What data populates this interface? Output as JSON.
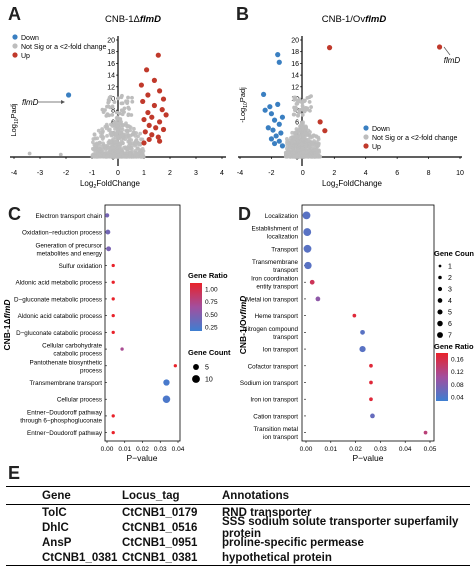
{
  "panels": {
    "A": {
      "letter": "A"
    },
    "B": {
      "letter": "B"
    },
    "C": {
      "letter": "C"
    },
    "D": {
      "letter": "D"
    },
    "E": {
      "letter": "E"
    }
  },
  "chart_data": [
    {
      "type": "scatter",
      "panel": "A",
      "title_prefix": "CNB-1Δ",
      "title_gene": "flmD",
      "xlabel_pre": "Log",
      "xlabel_sub": "2",
      "xlabel_post": "FoldChange",
      "ylabel_pre": "Log",
      "ylabel_sub": "10",
      "ylabel_post": "Padj",
      "xlim": [
        -4,
        4
      ],
      "ylim": [
        0,
        20
      ],
      "x_ticks": [
        "-4",
        "-3",
        "-2",
        "-1",
        "0",
        "1",
        "2",
        "3",
        "4"
      ],
      "y_ticks": [
        "0",
        "2",
        "4",
        "6",
        "8",
        "10",
        "12",
        "14",
        "16",
        "18",
        "20"
      ],
      "legend": [
        "Down",
        "Not Sig or a <2-fold change",
        "Up"
      ],
      "annotation": "flmD",
      "colors": {
        "down": "#3a7fc1",
        "ns": "#bdbdbd",
        "up": "#c0392b"
      },
      "series": [
        {
          "name": "Up",
          "points": [
            [
              1.55,
              17.4
            ],
            [
              1.1,
              14.9
            ],
            [
              1.4,
              13.1
            ],
            [
              0.9,
              12.3
            ],
            [
              1.6,
              11.3
            ],
            [
              1.15,
              10.6
            ],
            [
              1.75,
              9.9
            ],
            [
              0.95,
              9.5
            ],
            [
              1.4,
              8.8
            ],
            [
              1.7,
              8.1
            ],
            [
              1.15,
              7.6
            ],
            [
              1.85,
              7.2
            ],
            [
              1.3,
              6.8
            ],
            [
              1.0,
              6.4
            ],
            [
              1.6,
              6.0
            ],
            [
              1.2,
              5.4
            ],
            [
              1.45,
              5.0
            ],
            [
              1.75,
              4.7
            ],
            [
              1.05,
              4.3
            ],
            [
              1.3,
              3.8
            ],
            [
              1.55,
              3.4
            ],
            [
              1.2,
              3.0
            ],
            [
              1.6,
              2.7
            ],
            [
              1.0,
              2.4
            ]
          ]
        },
        {
          "name": "Down",
          "points": [
            [
              -1.9,
              10.6
            ]
          ]
        }
      ]
    },
    {
      "type": "scatter",
      "panel": "B",
      "title_prefix": "CNB-1/Ov",
      "title_gene": "flmD",
      "xlabel_pre": "Log",
      "xlabel_sub": "2",
      "xlabel_post": "FoldChange",
      "ylabel_pre": "-Log",
      "ylabel_sub": "10",
      "ylabel_post": "Padj",
      "xlim": [
        -4,
        10
      ],
      "ylim": [
        0,
        20
      ],
      "x_ticks": [
        "-4",
        "-2",
        "0",
        "2",
        "4",
        "6",
        "8",
        "10"
      ],
      "y_ticks": [
        "0",
        "2",
        "4",
        "6",
        "8",
        "10",
        "12",
        "14",
        "16",
        "18",
        "20"
      ],
      "legend": [
        "Down",
        "Not Sig or a <2-fold change",
        "Up"
      ],
      "annotation": "flmD",
      "series": [
        {
          "name": "Up",
          "points": [
            [
              8.7,
              18.8
            ],
            [
              1.7,
              18.7
            ],
            [
              1.1,
              6.0
            ],
            [
              1.4,
              4.5
            ]
          ]
        },
        {
          "name": "Down",
          "points": [
            [
              -1.6,
              17.5
            ],
            [
              -1.5,
              16.2
            ],
            [
              -2.5,
              10.7
            ],
            [
              -1.6,
              9.0
            ],
            [
              -2.1,
              8.6
            ],
            [
              -2.4,
              8.0
            ],
            [
              -2.0,
              7.4
            ],
            [
              -1.3,
              6.8
            ],
            [
              -1.8,
              6.3
            ],
            [
              -1.5,
              5.6
            ],
            [
              -2.2,
              5.0
            ],
            [
              -1.9,
              4.6
            ],
            [
              -1.4,
              4.1
            ],
            [
              -1.7,
              3.6
            ],
            [
              -2.0,
              3.1
            ],
            [
              -1.5,
              2.7
            ],
            [
              -1.8,
              2.3
            ],
            [
              -1.3,
              1.9
            ]
          ]
        }
      ]
    },
    {
      "type": "scatter",
      "panel": "C",
      "ylabel_pre": "CNB-1Δ",
      "ylabel_gene": "flmD",
      "xlabel": "P−value",
      "xlim": [
        0,
        0.04
      ],
      "x_ticks": [
        "0.00",
        "0.01",
        "0.02",
        "0.03",
        "0.04"
      ],
      "categories": [
        "Electron transport chain",
        "Oxidation−reduction process",
        "Generation of precursor|metabolites and energy",
        "Sulfur oxidation",
        "Aldonic acid metabolic process",
        "D−gluconate metabolic process",
        "Aldonic acid catabolic process",
        "D−gluconate catabolic process",
        "Cellular carbohydrate|catabolic process",
        "Pantothenate biosynthetic|process",
        "Transmembrane transport",
        "Cellular process",
        "Entner−Doudoroff pathway|through 6−phosphogluconate",
        "Entner−Doudoroff pathway"
      ],
      "pvalues": [
        0.0001,
        0.0005,
        0.0009,
        0.0035,
        0.0035,
        0.0035,
        0.0035,
        0.0035,
        0.0085,
        0.0385,
        0.0335,
        0.0335,
        0.0035,
        0.0035
      ],
      "gene_ratio": [
        0.28,
        0.26,
        0.3,
        1.0,
        1.0,
        1.0,
        1.0,
        1.0,
        0.55,
        1.0,
        0.05,
        0.07,
        1.0,
        1.0
      ],
      "gene_count": [
        2,
        3,
        3,
        1,
        1,
        1,
        1,
        1,
        1,
        1,
        6,
        9,
        1,
        1
      ],
      "legend_ratio_title": "Gene Ratio",
      "ratio_ticks": [
        "1.00",
        "0.75",
        "0.50",
        "0.25"
      ],
      "ratio_range": [
        0,
        1
      ],
      "legend_count_title": "Gene Count",
      "count_ticks": [
        "5",
        "10"
      ]
    },
    {
      "type": "scatter",
      "panel": "D",
      "ylabel_pre": "CNB-1/Ov",
      "ylabel_gene": "flmD",
      "xlabel": "P−value",
      "xlim": [
        0,
        0.05
      ],
      "x_ticks": [
        "0.00",
        "0.01",
        "0.02",
        "0.03",
        "0.04",
        "0.05"
      ],
      "categories": [
        "Localization",
        "Establishment of|localization",
        "Transport",
        "Transmembrane|transport",
        "Iron coordination|entity transport",
        "Metal ion transport",
        "Heme transport",
        "Nitrogen compound|transport",
        "Ion transport",
        "Cofactor transport",
        "Sodium ion transport",
        "Iron ion transport",
        "Cation transport",
        "Transition metal|ion transport"
      ],
      "pvalues": [
        0.0002,
        0.0005,
        0.0006,
        0.0008,
        0.0025,
        0.0048,
        0.0195,
        0.0228,
        0.0228,
        0.0262,
        0.0262,
        0.0262,
        0.0268,
        0.0482
      ],
      "gene_ratio": [
        0.04,
        0.04,
        0.04,
        0.04,
        0.14,
        0.08,
        0.16,
        0.04,
        0.04,
        0.16,
        0.16,
        0.16,
        0.05,
        0.12
      ],
      "gene_count": [
        7,
        7,
        7,
        6,
        2,
        2,
        1,
        2,
        4,
        1,
        1,
        1,
        2,
        1
      ],
      "legend_ratio_title": "Gene Ratio",
      "ratio_ticks": [
        "0.16",
        "0.12",
        "0.08",
        "0.04"
      ],
      "ratio_range": [
        0.02,
        0.17
      ],
      "legend_count_title": "Gene Count",
      "count_ticks": [
        "1",
        "2",
        "3",
        "4",
        "5",
        "6",
        "7"
      ]
    }
  ],
  "table": {
    "headers": [
      "Gene",
      "Locus_tag",
      "Annotations"
    ],
    "rows": [
      [
        "TolC",
        "CtCNB1_0179",
        "RND transporter"
      ],
      [
        "DhlC",
        "CtCNB1_0516",
        "SSS sodium solute transporter superfamily protein"
      ],
      [
        "AnsP",
        "CtCNB1_0951",
        "proline-specific permease"
      ],
      [
        "CtCNB1_0381",
        "CtCNB1_0381",
        "hypothetical protein"
      ]
    ]
  }
}
